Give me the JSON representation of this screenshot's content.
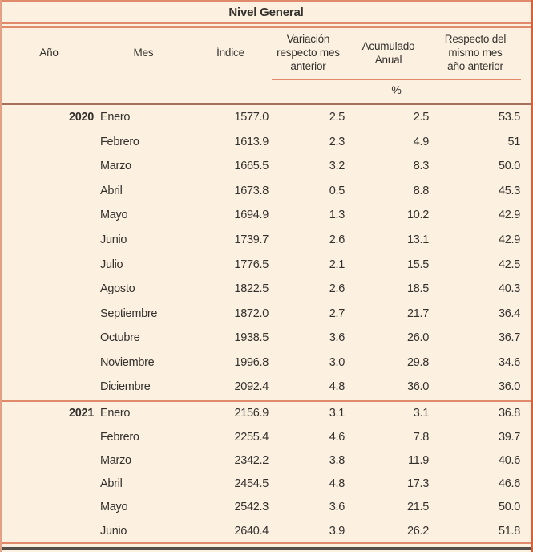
{
  "colors": {
    "background": "#fcf0e1",
    "rule_salmon": "#e18a6b",
    "rule_brown": "#a7705b",
    "rule_dark": "#524e49",
    "border_left": "#e2a184",
    "border_right": "#d2613e",
    "text": "#34312d"
  },
  "chart_data": {
    "type": "table",
    "title": "Nivel General",
    "columns": [
      "Año",
      "Mes",
      "Índice",
      "Variación\nrespecto mes\nanterior",
      "Acumulado\nAnual",
      "Respecto del\nmismo mes\naño anterior"
    ],
    "unit_row_label": "%",
    "groups": [
      {
        "year": "2020",
        "rows": [
          [
            "Enero",
            "1577.0",
            "2.5",
            "2.5",
            "53.5"
          ],
          [
            "Febrero",
            "1613.9",
            "2.3",
            "4.9",
            "51"
          ],
          [
            "Marzo",
            "1665.5",
            "3.2",
            "8.3",
            "50.0"
          ],
          [
            "Abril",
            "1673.8",
            "0.5",
            "8.8",
            "45.3"
          ],
          [
            "Mayo",
            "1694.9",
            "1.3",
            "10.2",
            "42.9"
          ],
          [
            "Junio",
            "1739.7",
            "2.6",
            "13.1",
            "42.9"
          ],
          [
            "Julio",
            "1776.5",
            "2.1",
            "15.5",
            "42.5"
          ],
          [
            "Agosto",
            "1822.5",
            "2.6",
            "18.5",
            "40.3"
          ],
          [
            "Septiembre",
            "1872.0",
            "2.7",
            "21.7",
            "36.4"
          ],
          [
            "Octubre",
            "1938.5",
            "3.6",
            "26.0",
            "36.7"
          ],
          [
            "Noviembre",
            "1996.8",
            "3.0",
            "29.8",
            "34.6"
          ],
          [
            "Diciembre",
            "2092.4",
            "4.8",
            "36.0",
            "36.0"
          ]
        ]
      },
      {
        "year": "2021",
        "rows": [
          [
            "Enero",
            "2156.9",
            "3.1",
            "3.1",
            "36.8"
          ],
          [
            "Febrero",
            "2255.4",
            "4.6",
            "7.8",
            "39.7"
          ],
          [
            "Marzo",
            "2342.2",
            "3.8",
            "11.9",
            "40.6"
          ],
          [
            "Abril",
            "2454.5",
            "4.8",
            "17.3",
            "46.6"
          ],
          [
            "Mayo",
            "2542.3",
            "3.6",
            "21.5",
            "50.0"
          ],
          [
            "Junio",
            "2640.4",
            "3.9",
            "26.2",
            "51.8"
          ]
        ]
      }
    ]
  }
}
